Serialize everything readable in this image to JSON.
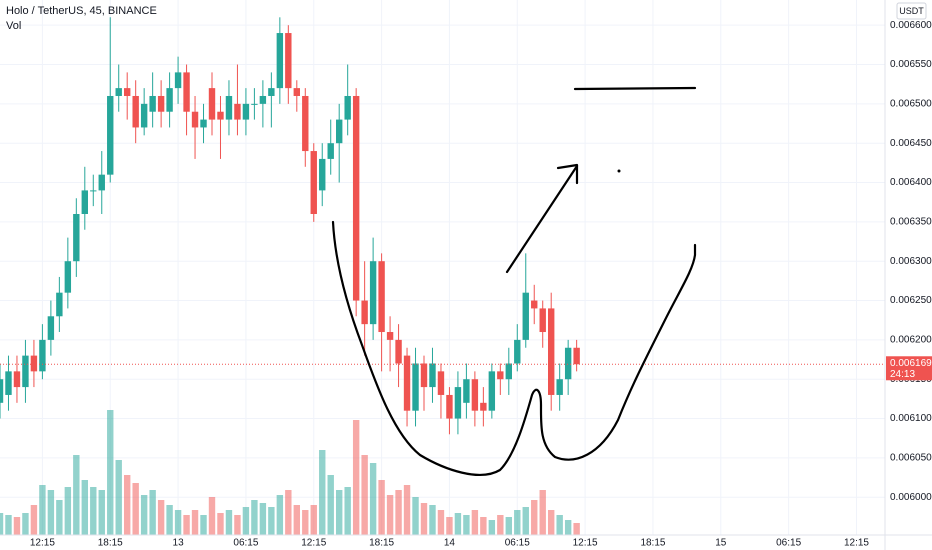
{
  "header": {
    "symbol": "Holo / TetherUS, 45, BINANCE",
    "volume_label": "Vol",
    "currency": "USDT"
  },
  "chart_data": {
    "type": "candlestick",
    "open": [
      0.00612,
      0.00613,
      0.00616,
      0.00614,
      0.00618,
      0.00616,
      0.0062,
      0.00623,
      0.00626,
      0.0063,
      0.00636,
      0.00639,
      0.00639,
      0.00641,
      0.00651,
      0.00652,
      0.00651,
      0.00647,
      0.00649,
      0.00651,
      0.00649,
      0.00652,
      0.00654,
      0.00649,
      0.00647,
      0.00652,
      0.00649,
      0.00648,
      0.0065,
      0.00648,
      0.0065,
      0.0065,
      0.00651,
      0.00652,
      0.00659,
      0.00652,
      0.00651,
      0.00644,
      0.00639,
      0.00643,
      0.00645,
      0.00648,
      0.00651,
      0.00625,
      0.00622,
      0.0063,
      0.00621,
      0.0062,
      0.00618,
      0.00611,
      0.00617,
      0.00614,
      0.00616,
      0.00613,
      0.0061,
      0.00612,
      0.00615,
      0.00612,
      0.00611,
      0.00616,
      0.00615,
      0.00617,
      0.0062,
      0.00625,
      0.00624,
      0.00624,
      0.00613,
      0.00615,
      0.00619
    ],
    "high": [
      0.00617,
      0.00618,
      0.00618,
      0.0062,
      0.0062,
      0.00622,
      0.00625,
      0.00628,
      0.00633,
      0.00638,
      0.00642,
      0.00641,
      0.00644,
      0.00661,
      0.00655,
      0.00654,
      0.00653,
      0.00652,
      0.00654,
      0.00653,
      0.00654,
      0.00656,
      0.00655,
      0.00651,
      0.0065,
      0.00654,
      0.00651,
      0.00653,
      0.00655,
      0.00652,
      0.00652,
      0.00653,
      0.00654,
      0.00661,
      0.0066,
      0.00653,
      0.00652,
      0.00645,
      0.00645,
      0.00648,
      0.0065,
      0.00655,
      0.00652,
      0.0063,
      0.00633,
      0.00631,
      0.00623,
      0.00622,
      0.00619,
      0.00619,
      0.00618,
      0.00619,
      0.00617,
      0.00614,
      0.00616,
      0.00617,
      0.00616,
      0.00614,
      0.00617,
      0.00617,
      0.00619,
      0.00622,
      0.00631,
      0.00627,
      0.00625,
      0.00626,
      0.00617,
      0.0062,
      0.0062
    ],
    "low": [
      0.0061,
      0.00611,
      0.00612,
      0.00612,
      0.00614,
      0.00615,
      0.00618,
      0.00621,
      0.00624,
      0.00628,
      0.00634,
      0.00637,
      0.00636,
      0.0064,
      0.00649,
      0.00648,
      0.00645,
      0.00646,
      0.00647,
      0.00647,
      0.00647,
      0.0065,
      0.00646,
      0.00643,
      0.00645,
      0.00646,
      0.00643,
      0.00646,
      0.00646,
      0.00646,
      0.00648,
      0.00647,
      0.00647,
      0.0065,
      0.0065,
      0.00649,
      0.00642,
      0.00635,
      0.00637,
      0.00641,
      0.0064,
      0.00646,
      0.00623,
      0.00618,
      0.0062,
      0.00616,
      0.00616,
      0.00614,
      0.00609,
      0.00609,
      0.00611,
      0.00612,
      0.0061,
      0.00608,
      0.00608,
      0.0061,
      0.00609,
      0.00609,
      0.0061,
      0.00613,
      0.00613,
      0.00616,
      0.00619,
      0.00622,
      0.00619,
      0.00611,
      0.00611,
      0.00613,
      0.00616
    ],
    "close": [
      0.00615,
      0.00616,
      0.00614,
      0.00618,
      0.00616,
      0.0062,
      0.00623,
      0.00626,
      0.0063,
      0.00636,
      0.00639,
      0.00639,
      0.00641,
      0.00651,
      0.00652,
      0.00651,
      0.00647,
      0.0065,
      0.00651,
      0.00649,
      0.00652,
      0.00654,
      0.00649,
      0.00647,
      0.00648,
      0.00648,
      0.00648,
      0.00651,
      0.00648,
      0.0065,
      0.0065,
      0.00651,
      0.00652,
      0.00659,
      0.00652,
      0.00651,
      0.00644,
      0.00636,
      0.00643,
      0.00645,
      0.00648,
      0.00651,
      0.00625,
      0.00622,
      0.0063,
      0.00621,
      0.0062,
      0.00617,
      0.00611,
      0.00617,
      0.00614,
      0.00617,
      0.00613,
      0.0061,
      0.00614,
      0.00615,
      0.00611,
      0.00611,
      0.00616,
      0.00615,
      0.00617,
      0.0062,
      0.00626,
      0.00624,
      0.00621,
      0.00613,
      0.00615,
      0.00619,
      0.006169
    ],
    "volume": [
      22,
      20,
      18,
      22,
      30,
      50,
      45,
      35,
      48,
      80,
      55,
      48,
      45,
      125,
      75,
      60,
      52,
      40,
      45,
      35,
      30,
      25,
      20,
      25,
      20,
      38,
      22,
      25,
      20,
      28,
      35,
      32,
      28,
      40,
      45,
      30,
      25,
      30,
      85,
      60,
      45,
      48,
      115,
      80,
      72,
      55,
      40,
      45,
      50,
      38,
      32,
      30,
      25,
      18,
      22,
      20,
      25,
      18,
      15,
      20,
      18,
      25,
      28,
      35,
      45,
      25,
      20,
      15,
      12
    ],
    "ylim": [
      0.005952,
      0.006632
    ],
    "yticks": [
      {
        "value": 0.006,
        "label": "0.006000"
      },
      {
        "value": 0.00605,
        "label": "0.006050"
      },
      {
        "value": 0.0061,
        "label": "0.006100"
      },
      {
        "value": 0.00615,
        "label": "0.006150"
      },
      {
        "value": 0.0062,
        "label": "0.006200"
      },
      {
        "value": 0.00625,
        "label": "0.006250"
      },
      {
        "value": 0.0063,
        "label": "0.006300"
      },
      {
        "value": 0.00635,
        "label": "0.006350"
      },
      {
        "value": 0.0064,
        "label": "0.006400"
      },
      {
        "value": 0.00645,
        "label": "0.006450"
      },
      {
        "value": 0.0065,
        "label": "0.006500"
      },
      {
        "value": 0.00655,
        "label": "0.006550"
      },
      {
        "value": 0.0066,
        "label": "0.006600"
      }
    ],
    "xtick_labels": [
      "12:15",
      "18:15",
      "13",
      "06:15",
      "12:15",
      "18:15",
      "14",
      "06:15",
      "12:15",
      "18:15",
      "15",
      "06:15",
      "12:15"
    ],
    "last_price": 0.006169,
    "countdown": "24:13",
    "colors": {
      "up": "#26a69a",
      "down": "#ef5350"
    },
    "grid": true
  }
}
